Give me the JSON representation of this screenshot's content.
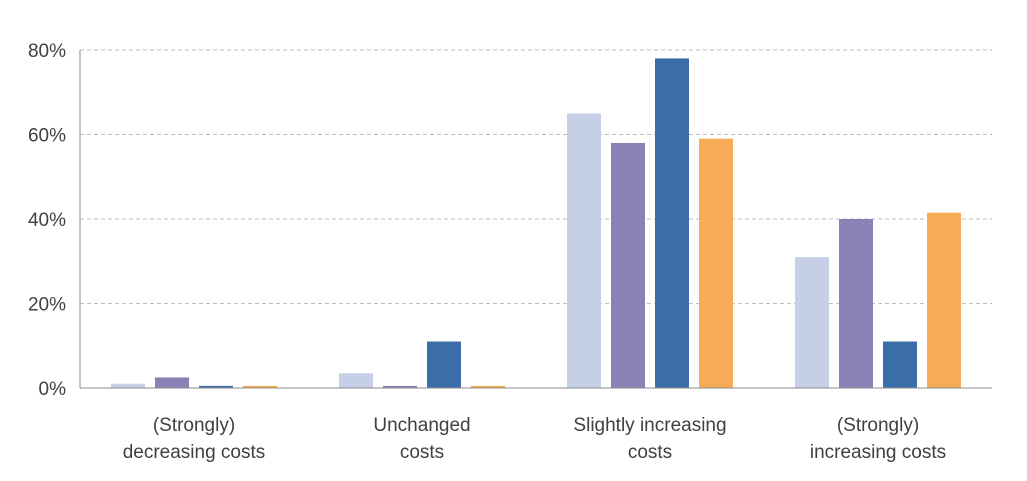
{
  "chart_data": {
    "type": "bar",
    "title": "",
    "xlabel": "",
    "ylabel": "",
    "categories": [
      [
        "(Strongly)",
        "decreasing costs"
      ],
      [
        "Unchanged",
        "costs"
      ],
      [
        "Slightly increasing",
        "costs"
      ],
      [
        "(Strongly)",
        "increasing costs"
      ]
    ],
    "series": [
      {
        "color": "#c5cfe6",
        "values": [
          1,
          3.5,
          65,
          31
        ]
      },
      {
        "color": "#8a82b4",
        "values": [
          2.5,
          0.5,
          58,
          40
        ]
      },
      {
        "color": "#3b6ea8",
        "values": [
          0.5,
          11,
          78,
          11
        ]
      },
      {
        "color": "#f8ab56",
        "values": [
          0.5,
          0.5,
          59,
          41.5
        ]
      }
    ],
    "ylim": [
      0,
      80
    ],
    "yticks": [
      0,
      20,
      40,
      60,
      80
    ],
    "ytick_labels": [
      "0%",
      "20%",
      "40%",
      "60%",
      "80%"
    ],
    "grid": true,
    "legend": "none"
  }
}
